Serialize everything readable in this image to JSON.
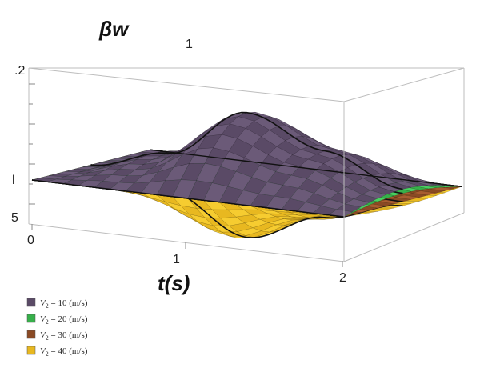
{
  "chart_data": {
    "type": "surface",
    "title": "",
    "zlabel": "βw",
    "xlabel": "t(s)",
    "x_ticks": [
      "0",
      "1",
      "2"
    ],
    "y_ticks": [
      "1"
    ],
    "z_ticks": [
      ".2",
      "",
      ""
    ],
    "xlim": [
      0,
      2
    ],
    "series": [
      {
        "name": "V₂ = 10 (m/s)",
        "color": "#5a4a66",
        "color_hi": "#6b5a78",
        "t": [
          0,
          0.5,
          1.0,
          1.5,
          2.0
        ],
        "w_mid": [
          0,
          0.05,
          0.17,
          0.1,
          0.03
        ]
      },
      {
        "name": "V₂ = 20 (m/s)",
        "color": "#36b04a",
        "color_hi": "#48d060",
        "t": [
          0,
          0.5,
          1.0,
          1.5,
          2.0
        ],
        "w_mid": [
          0,
          0.02,
          0.08,
          0.06,
          0.02
        ]
      },
      {
        "name": "V₂ = 30 (m/s)",
        "color": "#8a4a24",
        "color_hi": "#a85c30",
        "t": [
          0,
          0.5,
          1.0,
          1.5,
          2.0
        ],
        "w_mid": [
          0,
          0.0,
          0.01,
          0.01,
          0.0
        ]
      },
      {
        "name": "V₂ = 40 (m/s)",
        "color": "#e8b820",
        "color_hi": "#f6cc30",
        "t": [
          0,
          0.5,
          1.0,
          1.5,
          2.0
        ],
        "w_mid": [
          0,
          -0.04,
          -0.13,
          -0.06,
          -0.01
        ]
      }
    ],
    "legend": {
      "placement": "bottom-left",
      "entries": [
        {
          "var": "V",
          "sub": "2",
          "rest": " = 10 (m/s)",
          "color": "#5a4a66"
        },
        {
          "var": "V",
          "sub": "2",
          "rest": " = 20 (m/s)",
          "color": "#36b04a"
        },
        {
          "var": "V",
          "sub": "2",
          "rest": " = 30 (m/s)",
          "color": "#8a4a24"
        },
        {
          "var": "V",
          "sub": "2",
          "rest": " = 40 (m/s)",
          "color": "#e8b820"
        }
      ]
    }
  }
}
